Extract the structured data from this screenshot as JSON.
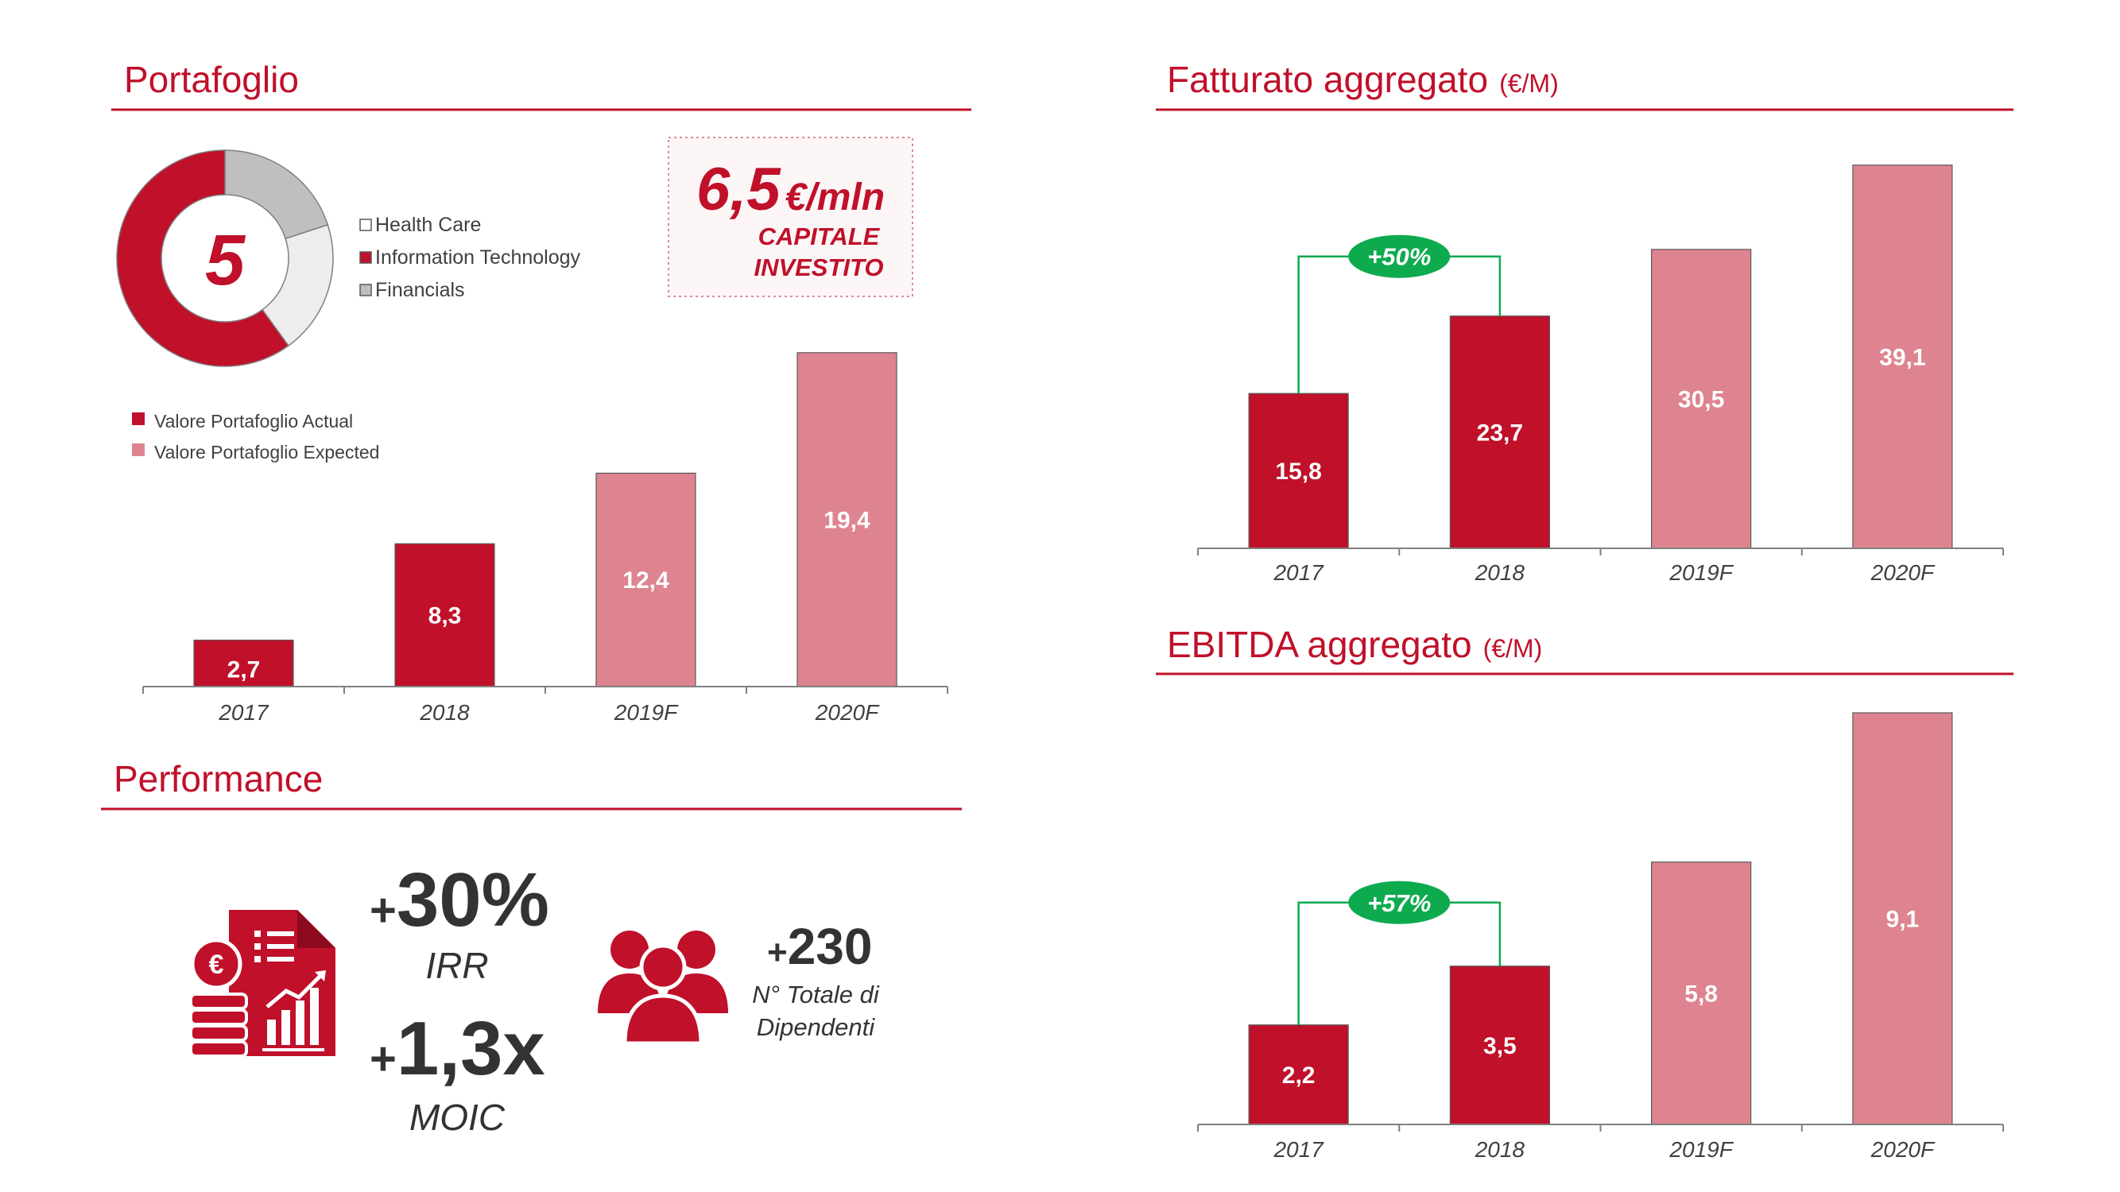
{
  "colors": {
    "accent": "#C0102A",
    "actual": "#C0102A",
    "expected": "#DE8490",
    "growth": "#0EAA4E",
    "donut_gray": "#BFBFBF",
    "donut_light": "#EDEDED",
    "text_dark": "#404040"
  },
  "sections": {
    "portafoglio": "Portafoglio",
    "performance": "Performance",
    "fatturato": "Fatturato aggregato",
    "fatturato_unit": "(€/M)",
    "ebitda": "EBITDA aggregato",
    "ebitda_unit": "(€/M)"
  },
  "portfolio_donut": {
    "center_value": "5",
    "segments": [
      {
        "name": "Health Care",
        "share": 0.2
      },
      {
        "name": "Information Technology",
        "share": 0.6
      },
      {
        "name": "Financials",
        "share": 0.2
      }
    ]
  },
  "capitale": {
    "value": "6,5",
    "unit": "€/mln",
    "line1": "CAPITALE",
    "line2": "INVESTITO"
  },
  "performance": {
    "irr_value": "30%",
    "irr_prefix": "+",
    "irr_label": "IRR",
    "moic_value": "1,3x",
    "moic_prefix": "+",
    "moic_label": "MOIC",
    "employees_value": "230",
    "employees_prefix": "+",
    "employees_label_1": "N° Totale di",
    "employees_label_2": "Dipendenti",
    "icon_finance": "finance-report-icon",
    "icon_people": "people-group-icon"
  },
  "chart_data": [
    {
      "id": "portafoglio",
      "type": "bar",
      "categories": [
        "2017",
        "2018",
        "2019F",
        "2020F"
      ],
      "values": [
        2.7,
        8.3,
        12.4,
        19.4
      ],
      "labels": [
        "2,7",
        "8,3",
        "12,4",
        "19,4"
      ],
      "kinds": [
        "actual",
        "actual",
        "expected",
        "expected"
      ],
      "legend": [
        "Valore Portafoglio Actual",
        "Valore Portafoglio Expected"
      ],
      "legend_position": "top-left",
      "ylim": [
        0,
        20.5
      ]
    },
    {
      "id": "fatturato",
      "type": "bar",
      "categories": [
        "2017",
        "2018",
        "2019F",
        "2020F"
      ],
      "values": [
        15.8,
        23.7,
        30.5,
        39.1
      ],
      "labels": [
        "15,8",
        "23,7",
        "30,5",
        "39,1"
      ],
      "kinds": [
        "actual",
        "actual",
        "expected",
        "expected"
      ],
      "growth": {
        "from": 0,
        "to": 1,
        "label": "+50%"
      },
      "ylim": [
        0,
        40.3
      ]
    },
    {
      "id": "ebitda",
      "type": "bar",
      "categories": [
        "2017",
        "2018",
        "2019F",
        "2020F"
      ],
      "values": [
        2.2,
        3.5,
        5.8,
        9.1
      ],
      "labels": [
        "2,2",
        "3,5",
        "5,8",
        "9,1"
      ],
      "kinds": [
        "actual",
        "actual",
        "expected",
        "expected"
      ],
      "growth": {
        "from": 0,
        "to": 1,
        "label": "+57%"
      },
      "ylim": [
        0,
        9.1
      ]
    }
  ]
}
